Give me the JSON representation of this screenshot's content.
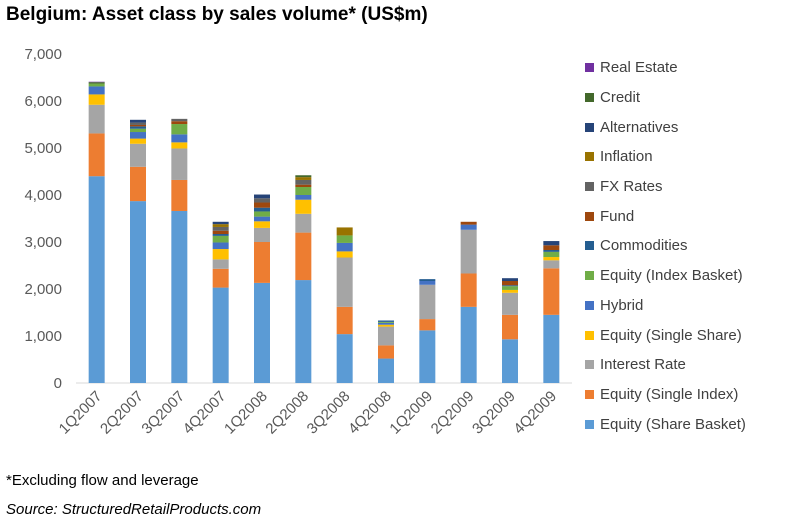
{
  "title": "Belgium: Asset class by sales volume* (US$m)",
  "footnote": "*Excluding flow and leverage",
  "source": "Source: StructuredRetailProducts.com",
  "chart_data": {
    "type": "bar",
    "stacked": true,
    "title": "Belgium: Asset class by sales volume* (US$m)",
    "xlabel": "",
    "ylabel": "",
    "ylim": [
      0,
      7000
    ],
    "yticks": [
      0,
      1000,
      2000,
      3000,
      4000,
      5000,
      6000,
      7000
    ],
    "ytick_labels": [
      "0",
      "1,000",
      "2,000",
      "3,000",
      "4,000",
      "5,000",
      "6,000",
      "7,000"
    ],
    "grid": false,
    "legend_position": "right",
    "categories": [
      "1Q2007",
      "2Q2007",
      "3Q2007",
      "4Q2007",
      "1Q2008",
      "2Q2008",
      "3Q2008",
      "4Q2008",
      "1Q2009",
      "2Q2009",
      "3Q2009",
      "4Q2009"
    ],
    "series": [
      {
        "name": "Equity (Share Basket)",
        "color": "#5B9BD5",
        "values": [
          4400,
          3870,
          3660,
          2030,
          2130,
          2190,
          1040,
          520,
          1120,
          1620,
          930,
          1450
        ]
      },
      {
        "name": "Equity (Single Index)",
        "color": "#ED7D31",
        "values": [
          910,
          730,
          660,
          400,
          870,
          1010,
          580,
          280,
          240,
          710,
          520,
          990
        ]
      },
      {
        "name": "Interest Rate",
        "color": "#A5A5A5",
        "values": [
          610,
          490,
          670,
          200,
          300,
          400,
          1050,
          400,
          730,
          930,
          470,
          170
        ]
      },
      {
        "name": "Equity (Single Share)",
        "color": "#FFC000",
        "values": [
          220,
          110,
          130,
          220,
          140,
          300,
          130,
          40,
          0,
          0,
          60,
          70
        ]
      },
      {
        "name": "Hybrid",
        "color": "#4472C4",
        "values": [
          170,
          140,
          170,
          140,
          100,
          100,
          180,
          40,
          80,
          110,
          0,
          0
        ]
      },
      {
        "name": "Equity (Index Basket)",
        "color": "#70AD47",
        "values": [
          60,
          70,
          220,
          140,
          110,
          170,
          160,
          20,
          0,
          0,
          80,
          110
        ]
      },
      {
        "name": "Commodities",
        "color": "#255E91",
        "values": [
          0,
          50,
          0,
          40,
          80,
          0,
          0,
          30,
          40,
          0,
          20,
          40
        ]
      },
      {
        "name": "Fund",
        "color": "#9E480E",
        "values": [
          0,
          30,
          60,
          70,
          110,
          50,
          0,
          0,
          0,
          60,
          90,
          100
        ]
      },
      {
        "name": "FX Rates",
        "color": "#636363",
        "values": [
          0,
          50,
          50,
          80,
          90,
          100,
          0,
          0,
          0,
          0,
          0,
          0
        ]
      },
      {
        "name": "Inflation",
        "color": "#997300",
        "values": [
          0,
          0,
          0,
          60,
          0,
          60,
          170,
          0,
          0,
          0,
          0,
          0
        ]
      },
      {
        "name": "Alternatives",
        "color": "#264478",
        "values": [
          0,
          60,
          0,
          50,
          80,
          0,
          0,
          0,
          0,
          0,
          60,
          90
        ]
      },
      {
        "name": "Credit",
        "color": "#43682B",
        "values": [
          30,
          0,
          0,
          0,
          0,
          40,
          0,
          0,
          0,
          0,
          0,
          0
        ]
      },
      {
        "name": "Real Estate",
        "color": "#7030A0",
        "values": [
          10,
          0,
          0,
          0,
          0,
          0,
          0,
          0,
          0,
          0,
          0,
          0
        ]
      }
    ]
  }
}
